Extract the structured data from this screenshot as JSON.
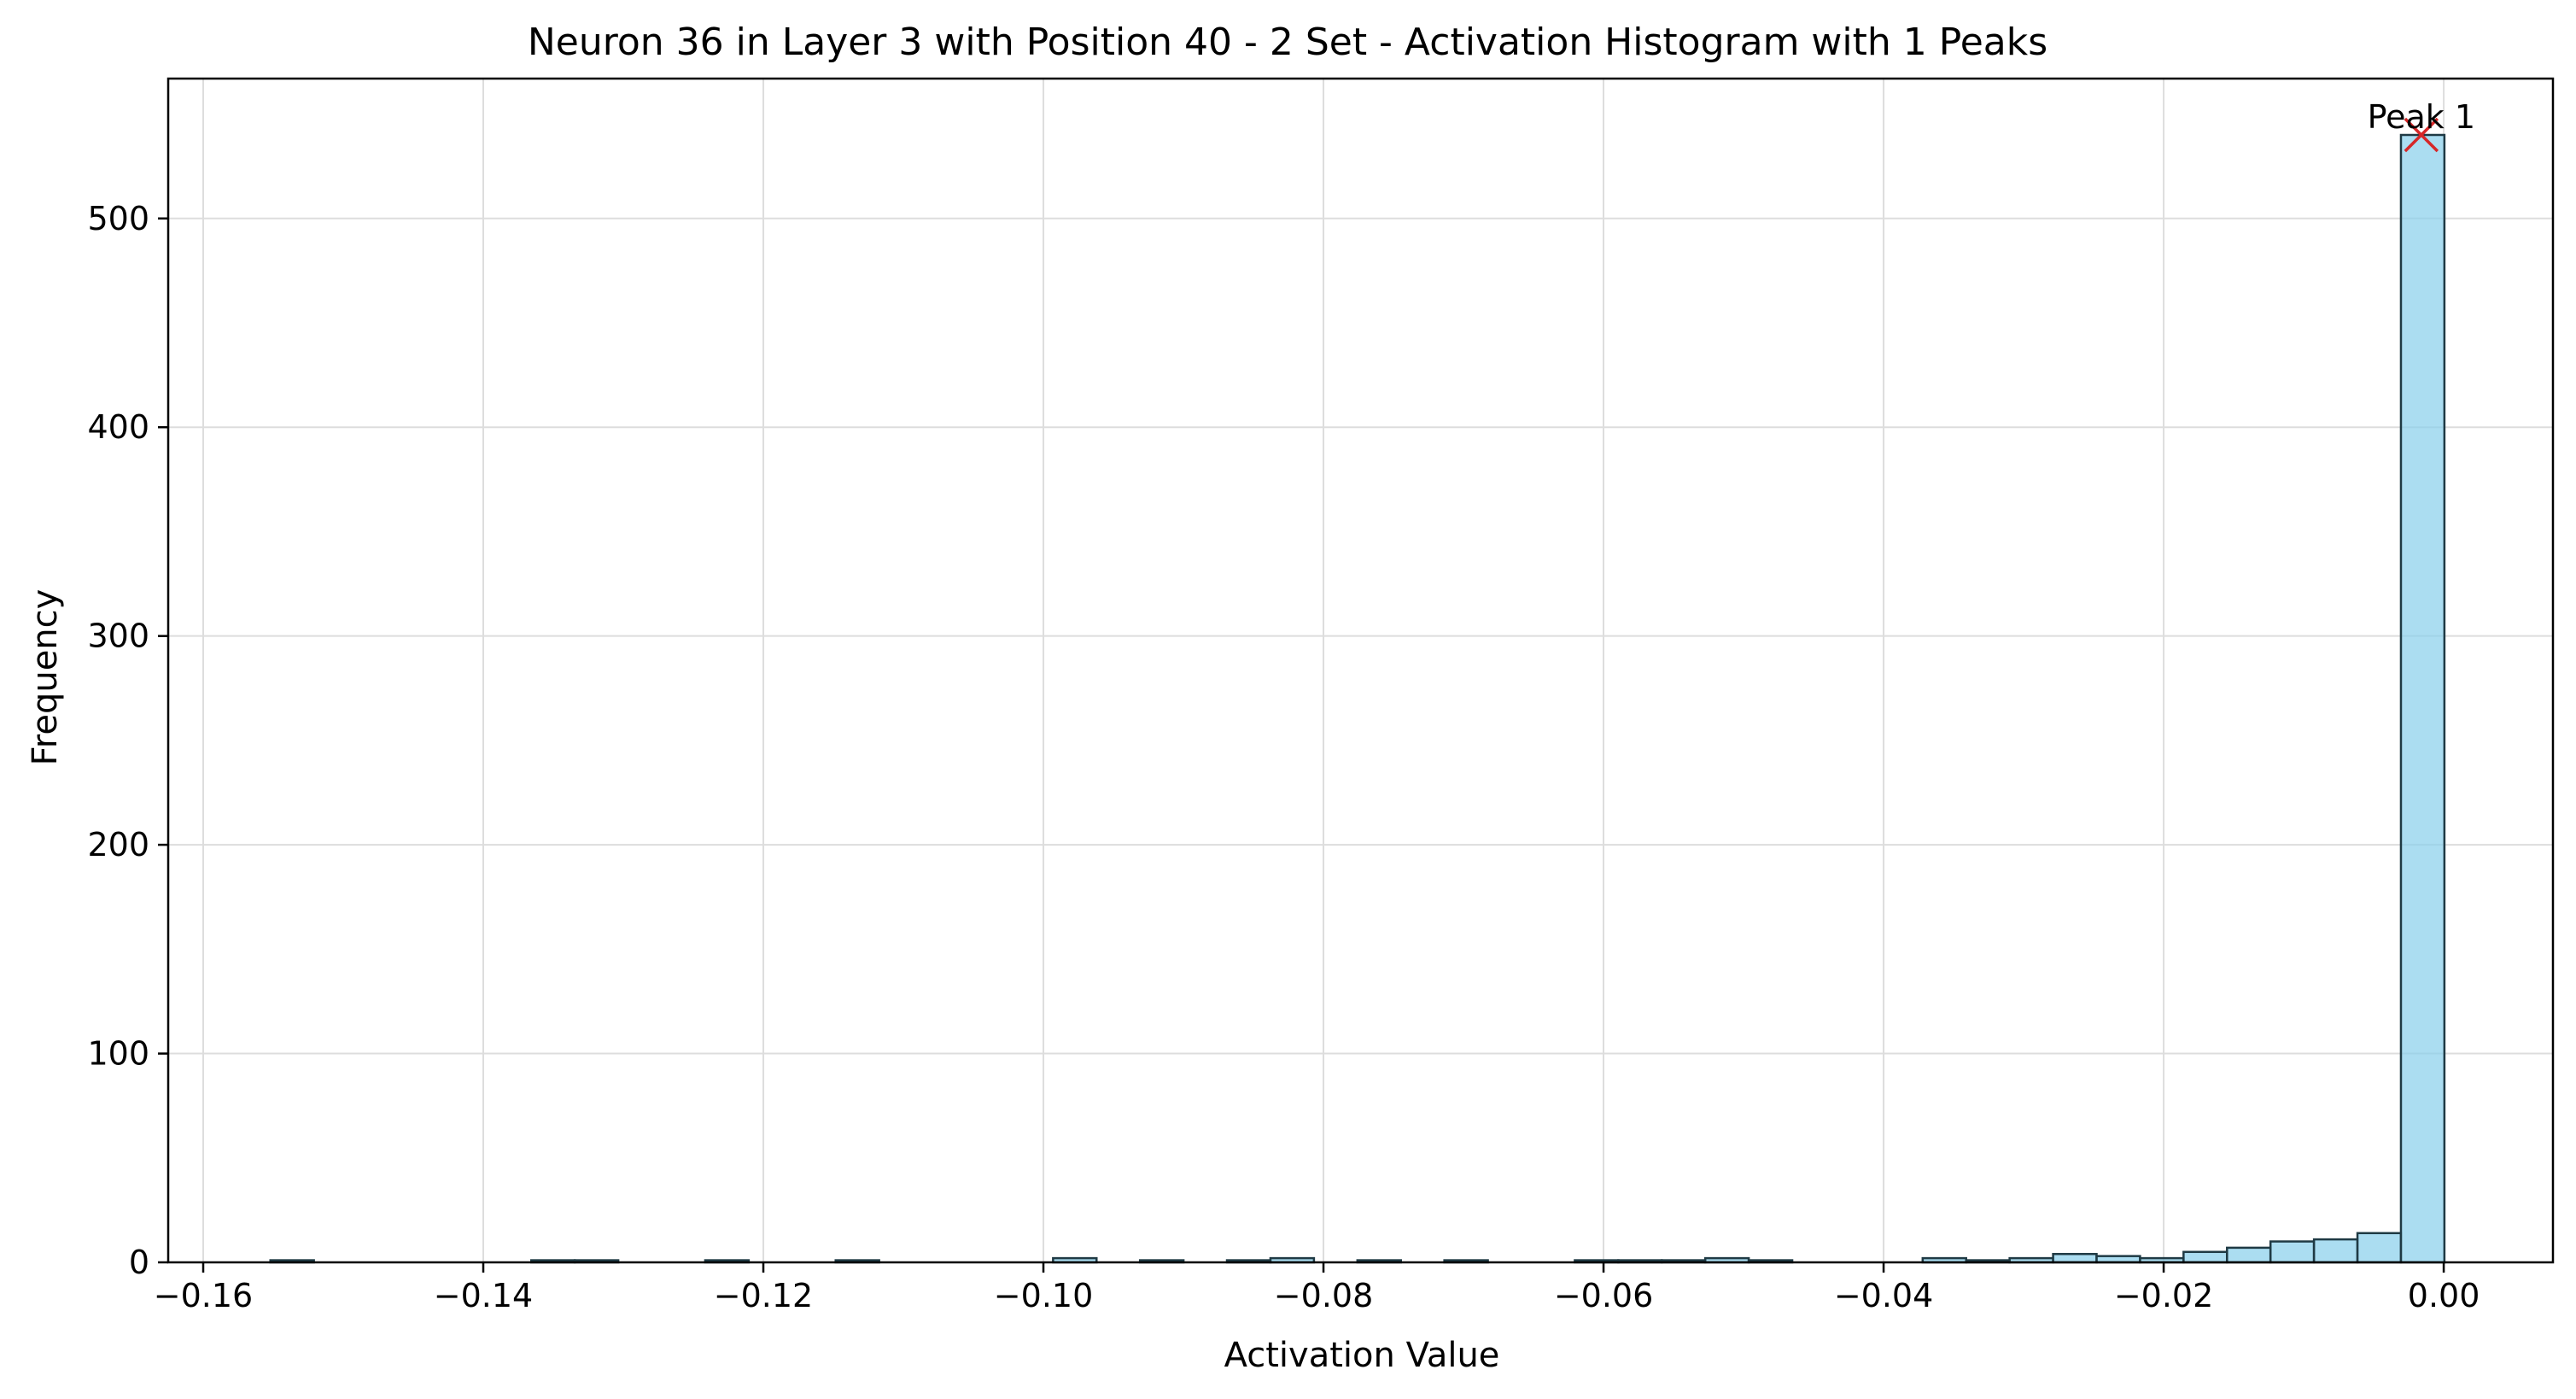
{
  "chart_data": {
    "type": "bar",
    "title": "Neuron 36 in Layer 3 with Position 40 - 2 Set - Activation Histogram with 1 Peaks",
    "xlabel": "Activation Value",
    "ylabel": "Frequency",
    "xlim": [
      -0.1625,
      0.0078
    ],
    "ylim": [
      0,
      567
    ],
    "xticks": [
      -0.16,
      -0.14,
      -0.12,
      -0.1,
      -0.08,
      -0.06,
      -0.04,
      -0.02,
      0.0
    ],
    "xtick_labels": [
      "−0.16",
      "−0.14",
      "−0.12",
      "−0.10",
      "−0.08",
      "−0.06",
      "−0.04",
      "−0.02",
      "0.00"
    ],
    "yticks": [
      0,
      100,
      200,
      300,
      400,
      500
    ],
    "ytick_labels": [
      "0",
      "100",
      "200",
      "300",
      "400",
      "500"
    ],
    "grid": true,
    "bar_color": "#87ceeb",
    "edge_color": "#1f3a44",
    "bin_edges_start": -0.1552,
    "bin_width": 0.003105,
    "counts": [
      1,
      0,
      0,
      0,
      0,
      0,
      1,
      1,
      0,
      0,
      1,
      0,
      0,
      1,
      0,
      0,
      0,
      0,
      2,
      0,
      1,
      0,
      1,
      2,
      0,
      1,
      0,
      1,
      0,
      0,
      1,
      1,
      1,
      2,
      1,
      0,
      0,
      0,
      2,
      1,
      2,
      4,
      3,
      2,
      5,
      7,
      10,
      11,
      14,
      540
    ],
    "peaks": [
      {
        "label": "Peak 1",
        "x": -0.0016,
        "y": 540,
        "color": "#d62728"
      }
    ]
  }
}
